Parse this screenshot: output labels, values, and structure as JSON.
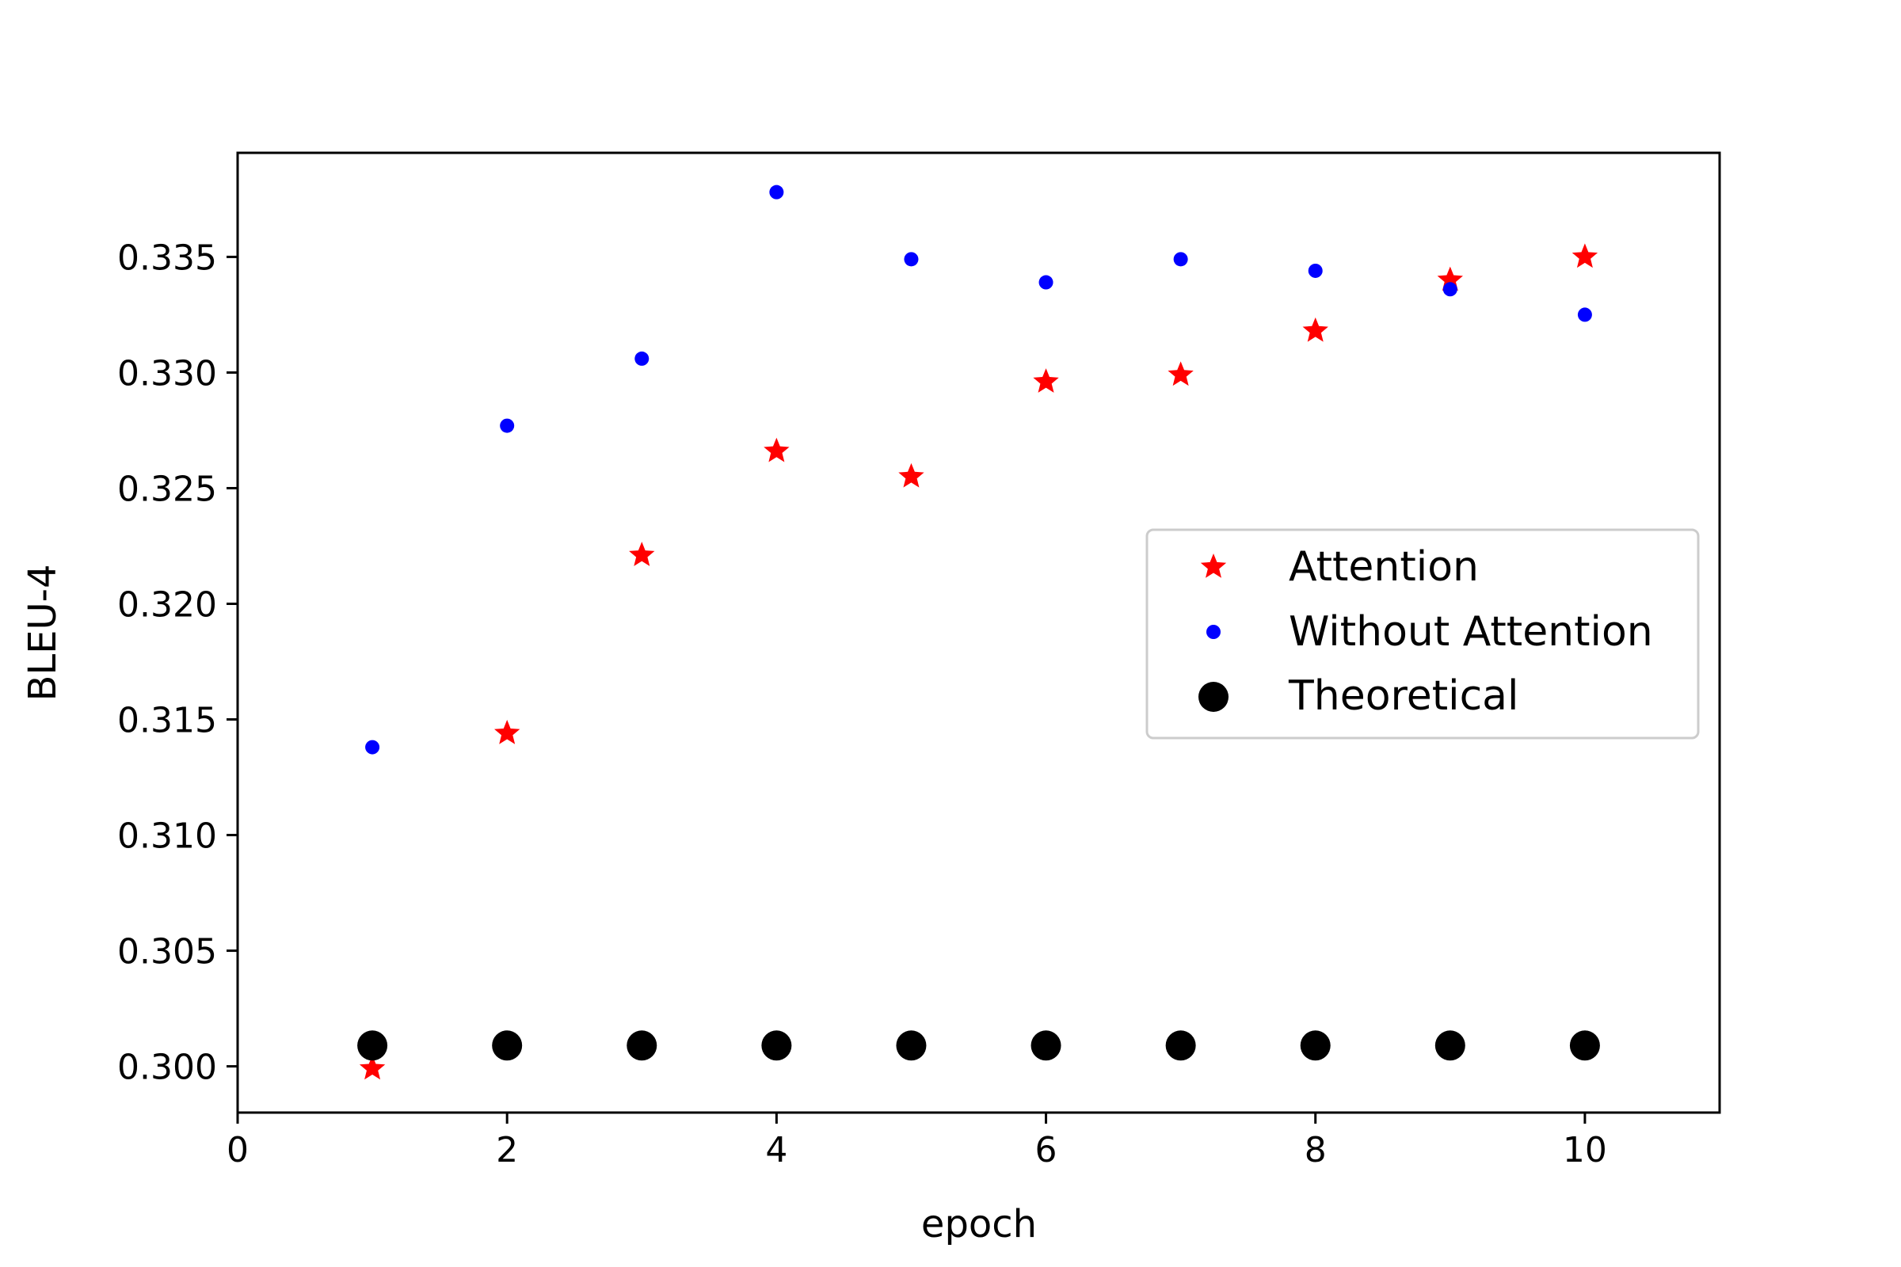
{
  "chart_data": {
    "type": "scatter",
    "title": "",
    "xlabel": "epoch",
    "ylabel": "BLEU-4",
    "xlim": [
      0,
      11
    ],
    "ylim": [
      0.298,
      0.3395
    ],
    "xticks": [
      0,
      2,
      4,
      6,
      8,
      10
    ],
    "xtick_labels": [
      "0",
      "2",
      "4",
      "6",
      "8",
      "10"
    ],
    "yticks": [
      0.3,
      0.305,
      0.31,
      0.315,
      0.32,
      0.325,
      0.33,
      0.335
    ],
    "ytick_labels": [
      "0.300",
      "0.305",
      "0.310",
      "0.315",
      "0.320",
      "0.325",
      "0.330",
      "0.335"
    ],
    "grid": false,
    "legend_position": "center-right",
    "series": [
      {
        "name": "Attention",
        "marker": "star",
        "color": "#ff0000",
        "x": [
          1,
          2,
          3,
          4,
          5,
          6,
          7,
          8,
          9,
          10
        ],
        "y": [
          0.2999,
          0.3144,
          0.3221,
          0.3266,
          0.3255,
          0.3296,
          0.3299,
          0.3318,
          0.334,
          0.335
        ]
      },
      {
        "name": "Without Attention",
        "marker": "small-dot",
        "color": "#0000ff",
        "x": [
          1,
          2,
          3,
          4,
          5,
          6,
          7,
          8,
          9,
          10
        ],
        "y": [
          0.3138,
          0.3277,
          0.3306,
          0.3378,
          0.3349,
          0.3339,
          0.3349,
          0.3344,
          0.3336,
          0.3325
        ]
      },
      {
        "name": "Theoretical",
        "marker": "large-dot",
        "color": "#000000",
        "x": [
          1,
          2,
          3,
          4,
          5,
          6,
          7,
          8,
          9,
          10
        ],
        "y": [
          0.3009,
          0.3009,
          0.3009,
          0.3009,
          0.3009,
          0.3009,
          0.3009,
          0.3009,
          0.3009,
          0.3009
        ]
      }
    ]
  }
}
